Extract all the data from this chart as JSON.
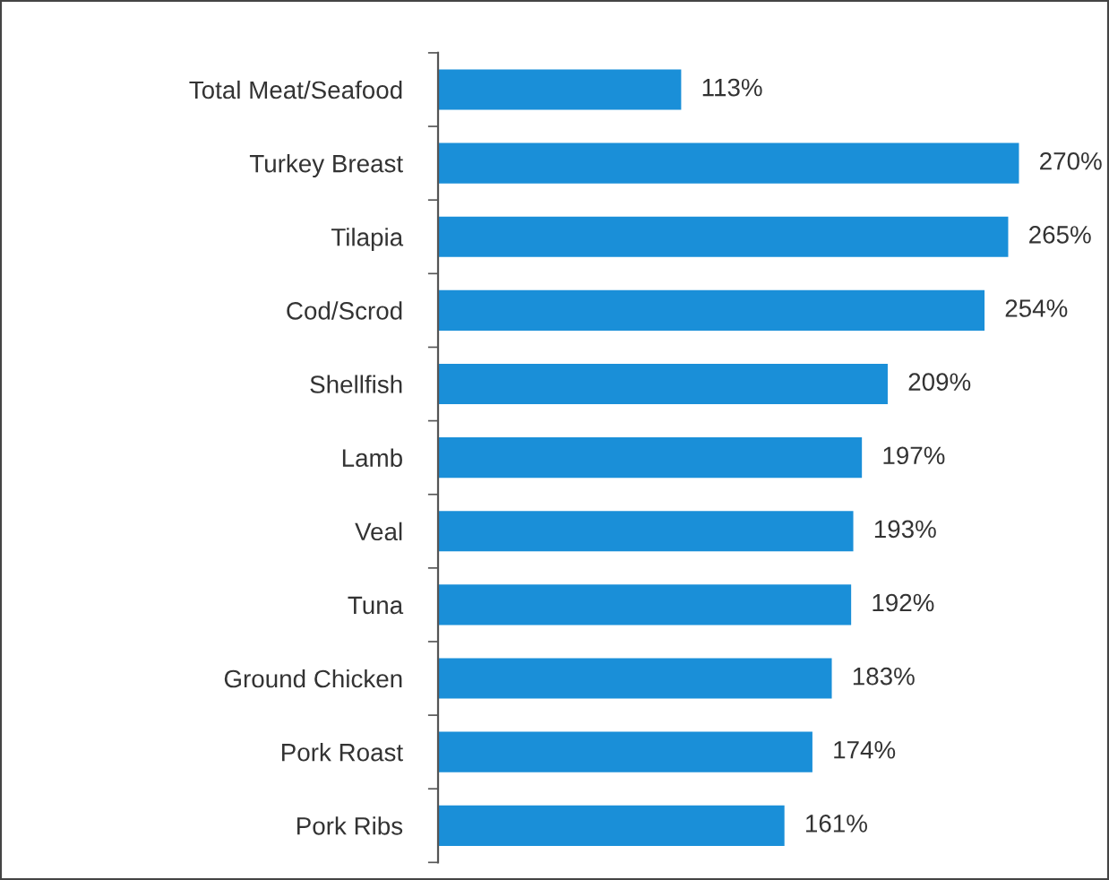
{
  "chart_data": {
    "type": "bar",
    "orientation": "horizontal",
    "categories": [
      "Total Meat/Seafood",
      "Turkey Breast",
      "Tilapia",
      "Cod/Scrod",
      "Shellfish",
      "Lamb",
      "Veal",
      "Tuna",
      "Ground Chicken",
      "Pork Roast",
      "Pork Ribs"
    ],
    "values": [
      113,
      270,
      265,
      254,
      209,
      197,
      193,
      192,
      183,
      174,
      161
    ],
    "value_labels": [
      "113%",
      "270%",
      "265%",
      "254%",
      "209%",
      "197%",
      "193%",
      "192%",
      "183%",
      "174%",
      "161%"
    ],
    "color": "#1a8fd8",
    "tick_labels": "y",
    "grid": false,
    "legend": false
  }
}
